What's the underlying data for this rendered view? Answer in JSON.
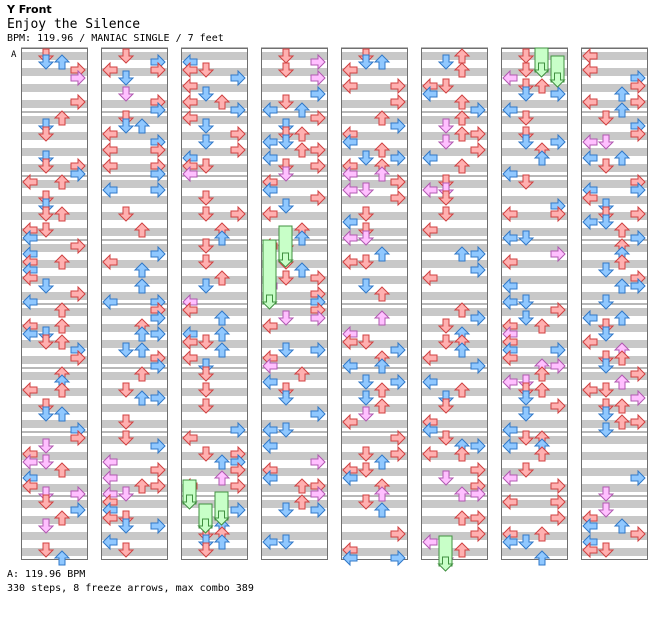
{
  "header": {
    "chart_type": "Y Front",
    "song_title": "Enjoy the Silence",
    "meta_line": "BPM: 119.96 / MANIAC SINGLE / 7 feet"
  },
  "chart": {
    "section_marker": "A",
    "columns_count": 8,
    "measures_per_column": 8,
    "colors": {
      "red_fill": "#ffb0b0",
      "red_stroke": "#d04040",
      "blue_fill": "#90c8ff",
      "blue_stroke": "#3078c8",
      "pink_fill": "#ffc0ff",
      "pink_stroke": "#b058b0",
      "freeze_fill": "#c8ffc8",
      "freeze_stroke": "#409040",
      "band": "#c8c8c8",
      "border": "#707070"
    },
    "lanes": [
      "left",
      "down",
      "up",
      "right"
    ]
  },
  "footer": {
    "bpm_line": "A: 119.96 BPM",
    "stats_line": "330 steps, 8 freeze arrows, max combo 389"
  }
}
